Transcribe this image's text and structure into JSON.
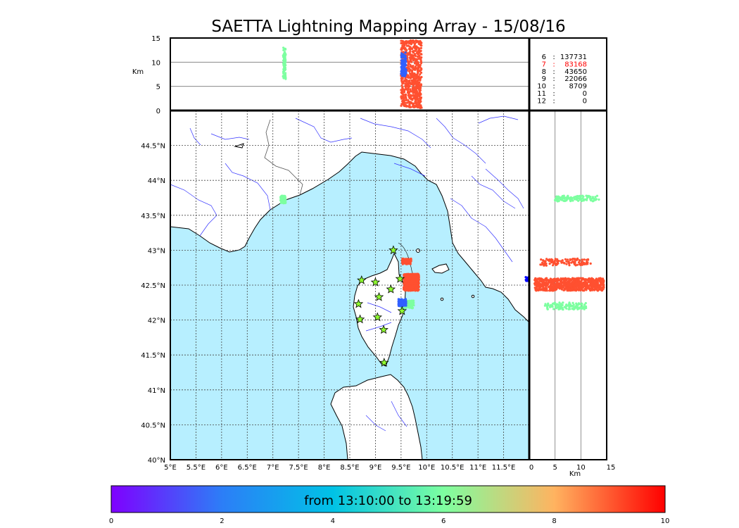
{
  "title": "SAETTA Lightning Mapping Array - 15/08/16",
  "time_range_label": "from 13:10:00 to 13:19:59",
  "colors": {
    "sea": "#b7efff",
    "land": "#ffffff",
    "rivers": "#3333ff",
    "highlight_count": "#ff0000"
  },
  "chart_data": [
    {
      "type": "scatter",
      "panel": "altitude-vs-longitude",
      "ylabel": "Km",
      "xlim": [
        5,
        12
      ],
      "ylim": [
        0,
        15
      ],
      "yticks": [
        "0",
        "5",
        "10",
        "15"
      ],
      "clusters": [
        {
          "lon": [
            7.2,
            7.25
          ],
          "alt": [
            6.5,
            13
          ],
          "color": "#7dffa0"
        },
        {
          "lon": [
            9.5,
            9.9
          ],
          "alt": [
            0.5,
            14.5
          ],
          "color": "#ff5030"
        },
        {
          "lon": [
            9.5,
            9.6
          ],
          "alt": [
            7,
            12
          ],
          "color": "#3060ff"
        }
      ]
    },
    {
      "type": "map",
      "panel": "plan-view",
      "xlim": [
        5,
        12
      ],
      "ylim": [
        40,
        45
      ],
      "xticks": [
        "5°E",
        "5.5°E",
        "6°E",
        "6.5°E",
        "7°E",
        "7.5°E",
        "8°E",
        "8.5°E",
        "9°E",
        "9.5°E",
        "10°E",
        "10.5°E",
        "11°E",
        "11.5°E"
      ],
      "yticks": [
        "40°N",
        "40.5°N",
        "41°N",
        "41.5°N",
        "42°N",
        "42.5°N",
        "43°N",
        "43.5°N",
        "44°N",
        "44.5°N"
      ],
      "stations": [
        {
          "lon": 9.35,
          "lat": 43.0
        },
        {
          "lon": 8.73,
          "lat": 42.57
        },
        {
          "lon": 9.0,
          "lat": 42.54
        },
        {
          "lon": 9.48,
          "lat": 42.59
        },
        {
          "lon": 9.3,
          "lat": 42.44
        },
        {
          "lon": 9.07,
          "lat": 42.33
        },
        {
          "lon": 8.67,
          "lat": 42.23
        },
        {
          "lon": 9.52,
          "lat": 42.13
        },
        {
          "lon": 8.7,
          "lat": 42.01
        },
        {
          "lon": 9.04,
          "lat": 42.04
        },
        {
          "lon": 9.16,
          "lat": 41.86
        },
        {
          "lon": 9.17,
          "lat": 41.39
        }
      ],
      "clusters": [
        {
          "lon": [
            7.15,
            7.25
          ],
          "lat": [
            43.67,
            43.78
          ],
          "color": "#7dffa0"
        },
        {
          "lon": [
            9.52,
            9.7
          ],
          "lat": [
            42.8,
            42.88
          ],
          "color": "#ff5030"
        },
        {
          "lon": [
            9.55,
            9.85
          ],
          "lat": [
            42.42,
            42.66
          ],
          "color": "#ff5030"
        },
        {
          "lon": [
            9.5,
            9.75
          ],
          "lat": [
            42.17,
            42.28
          ],
          "color": "#7dffa0"
        },
        {
          "lon": [
            9.45,
            9.6
          ],
          "lat": [
            42.2,
            42.3
          ],
          "color": "#3060ff"
        },
        {
          "lon": [
            11.93,
            12.0
          ],
          "lat": [
            42.56,
            42.62
          ],
          "color": "#0000ff"
        }
      ]
    },
    {
      "type": "scatter",
      "panel": "latitude-vs-altitude",
      "xlabel": "Km",
      "xlim": [
        0,
        15
      ],
      "ylim": [
        40,
        45
      ],
      "xticks": [
        "0",
        "5",
        "10",
        "15"
      ],
      "clusters": [
        {
          "alt": [
            5,
            13.5
          ],
          "lat": [
            43.7,
            43.78
          ],
          "color": "#7dffa0"
        },
        {
          "alt": [
            1,
            14.5
          ],
          "lat": [
            42.42,
            42.6
          ],
          "color": "#ff5030"
        },
        {
          "alt": [
            2,
            12
          ],
          "lat": [
            42.78,
            42.88
          ],
          "color": "#ff5030"
        },
        {
          "alt": [
            3,
            11
          ],
          "lat": [
            42.15,
            42.25
          ],
          "color": "#7dffa0"
        }
      ]
    },
    {
      "type": "table",
      "panel": "station-count-histogram",
      "rows": [
        {
          "stations": "6",
          "sep": ":",
          "count": "137731"
        },
        {
          "stations": "7",
          "sep": ":",
          "count": "83168"
        },
        {
          "stations": "8",
          "sep": ":",
          "count": "43650"
        },
        {
          "stations": "9",
          "sep": ":",
          "count": "22066"
        },
        {
          "stations": "10",
          "sep": ":",
          "count": "8709"
        },
        {
          "stations": "11",
          "sep": ":",
          "count": "0"
        },
        {
          "stations": "12",
          "sep": ":",
          "count": "0"
        }
      ],
      "highlight_row": 1
    },
    {
      "type": "colorbar",
      "range": [
        0,
        10
      ],
      "ticks": [
        "0",
        "2",
        "4",
        "6",
        "8",
        "10"
      ],
      "stops": [
        "#7f00ff",
        "#2c7ef7",
        "#00c2e6",
        "#7dffa0",
        "#ffb360",
        "#ff0000"
      ]
    }
  ]
}
